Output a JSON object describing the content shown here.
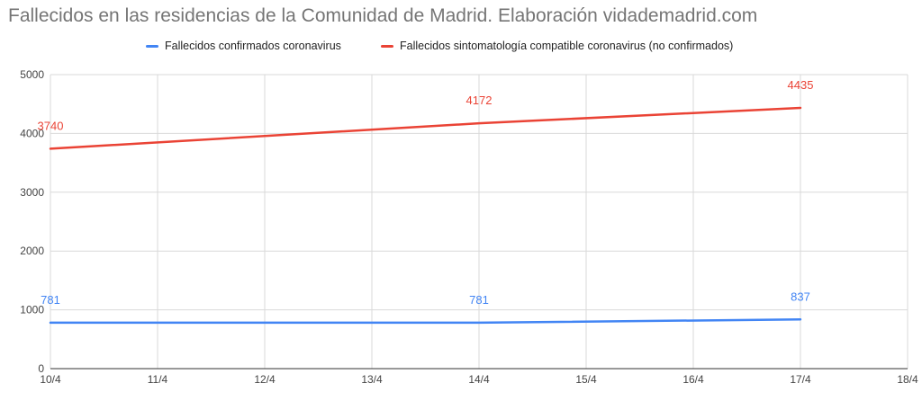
{
  "title": "Fallecidos en las residencias de la Comunidad de Madrid. Elaboración vidademadrid.com",
  "chart_data": {
    "type": "line",
    "title": "Fallecidos en las residencias de la Comunidad de Madrid. Elaboración vidademadrid.com",
    "xlabel": "",
    "ylabel": "",
    "categories": [
      "10/4",
      "11/4",
      "12/4",
      "13/4",
      "14/4",
      "15/4",
      "16/4",
      "17/4",
      "18/4"
    ],
    "yticks": [
      "0",
      "1000",
      "2000",
      "3000",
      "4000",
      "5000"
    ],
    "ylim": [
      0,
      5000
    ],
    "grid": true,
    "legend_position": "top",
    "series": [
      {
        "name": "Fallecidos confirmados coronavirus",
        "color": "#4285f4",
        "points": [
          {
            "x": "10/4",
            "y": 781
          },
          {
            "x": "14/4",
            "y": 781
          },
          {
            "x": "17/4",
            "y": 837
          }
        ],
        "data_labels": [
          {
            "x": "10/4",
            "y": 781,
            "text": "781"
          },
          {
            "x": "14/4",
            "y": 781,
            "text": "781"
          },
          {
            "x": "17/4",
            "y": 837,
            "text": "837"
          }
        ]
      },
      {
        "name": "Fallecidos sintomatología compatible coronavirus (no confirmados)",
        "color": "#ea4335",
        "points": [
          {
            "x": "10/4",
            "y": 3740
          },
          {
            "x": "14/4",
            "y": 4172
          },
          {
            "x": "17/4",
            "y": 4435
          }
        ],
        "data_labels": [
          {
            "x": "10/4",
            "y": 3740,
            "text": "3740"
          },
          {
            "x": "14/4",
            "y": 4172,
            "text": "4172"
          },
          {
            "x": "17/4",
            "y": 4435,
            "text": "4435"
          }
        ]
      }
    ]
  }
}
